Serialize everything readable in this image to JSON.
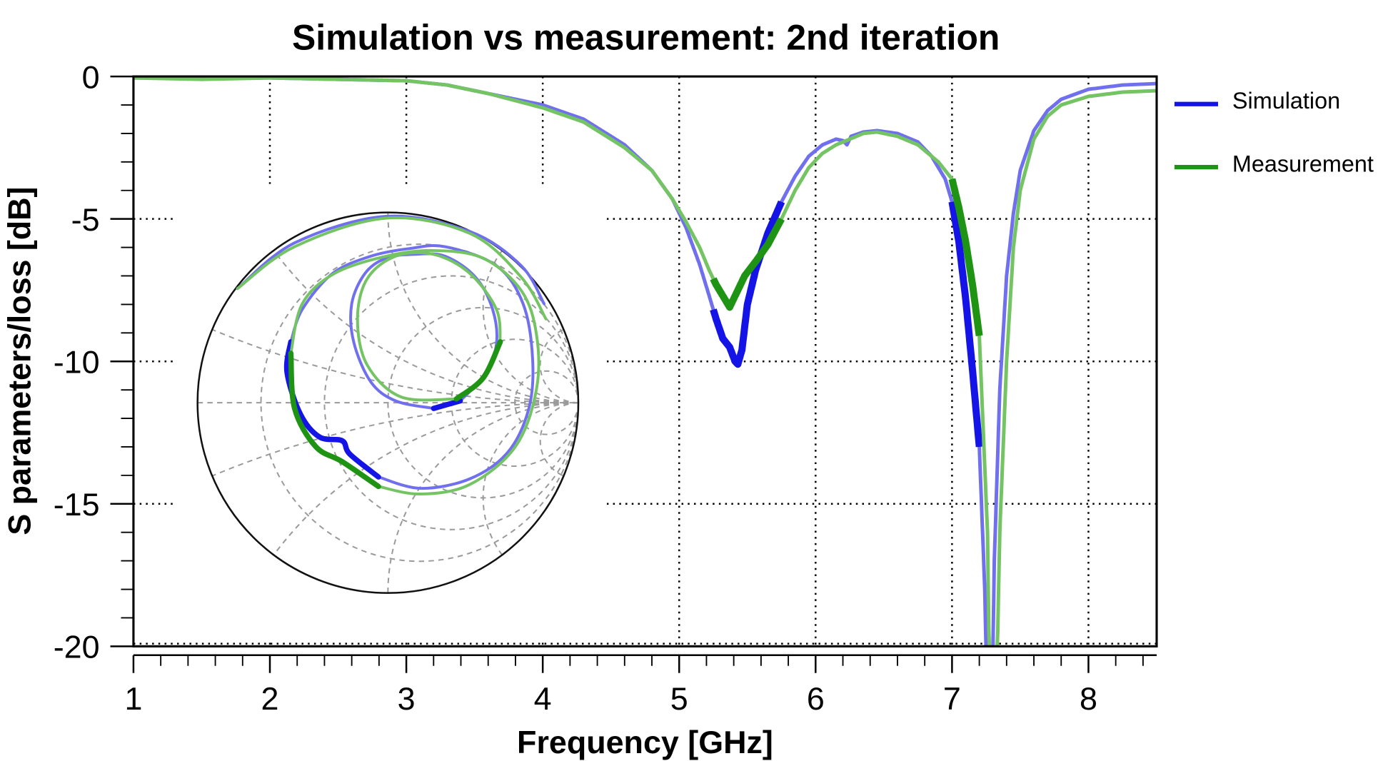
{
  "chart_data": {
    "type": "line",
    "title": "Simulation vs measurement: 2nd iteration",
    "xlabel": "Frequency [GHz]",
    "ylabel": "S parameters/loss [dB]",
    "xlim": [
      1,
      8.5
    ],
    "ylim": [
      -20,
      0
    ],
    "x_ticks": [
      "1",
      "2",
      "3",
      "4",
      "5",
      "6",
      "7",
      "8"
    ],
    "y_ticks": [
      "0",
      "-5",
      "-10",
      "-15",
      "-20"
    ],
    "grid": true,
    "legend_position": "right",
    "highlight_ranges_ghz": [
      [
        5.25,
        5.75
      ],
      [
        7.0,
        7.2
      ]
    ],
    "series": [
      {
        "name": "Simulation",
        "color": "#7070ee",
        "highlight_color": "#1414e6",
        "points": [
          [
            1,
            -0.05
          ],
          [
            1.5,
            -0.05
          ],
          [
            2,
            -0.05
          ],
          [
            2.5,
            -0.1
          ],
          [
            3,
            -0.15
          ],
          [
            3.3,
            -0.3
          ],
          [
            3.6,
            -0.6
          ],
          [
            4,
            -1.0
          ],
          [
            4.3,
            -1.5
          ],
          [
            4.6,
            -2.4
          ],
          [
            4.8,
            -3.3
          ],
          [
            4.95,
            -4.3
          ],
          [
            5.05,
            -5.3
          ],
          [
            5.15,
            -6.6
          ],
          [
            5.22,
            -7.7
          ],
          [
            5.27,
            -8.5
          ],
          [
            5.32,
            -9.2
          ],
          [
            5.37,
            -9.5
          ],
          [
            5.41,
            -10.0
          ],
          [
            5.43,
            -10.1
          ],
          [
            5.46,
            -9.6
          ],
          [
            5.5,
            -8.0
          ],
          [
            5.56,
            -6.8
          ],
          [
            5.65,
            -5.5
          ],
          [
            5.75,
            -4.4
          ],
          [
            5.85,
            -3.5
          ],
          [
            5.95,
            -2.8
          ],
          [
            6.05,
            -2.4
          ],
          [
            6.15,
            -2.2
          ],
          [
            6.2,
            -2.25
          ],
          [
            6.23,
            -2.4
          ],
          [
            6.26,
            -2.1
          ],
          [
            6.35,
            -1.95
          ],
          [
            6.45,
            -1.9
          ],
          [
            6.6,
            -2.0
          ],
          [
            6.75,
            -2.3
          ],
          [
            6.85,
            -2.8
          ],
          [
            6.95,
            -3.6
          ],
          [
            7.0,
            -4.4
          ],
          [
            7.05,
            -5.8
          ],
          [
            7.1,
            -7.8
          ],
          [
            7.15,
            -10.3
          ],
          [
            7.2,
            -13
          ],
          [
            7.24,
            -18
          ],
          [
            7.26,
            -23
          ],
          [
            7.29,
            -23
          ],
          [
            7.31,
            -17
          ],
          [
            7.35,
            -11
          ],
          [
            7.4,
            -7
          ],
          [
            7.45,
            -4.8
          ],
          [
            7.5,
            -3.3
          ],
          [
            7.6,
            -1.9
          ],
          [
            7.7,
            -1.2
          ],
          [
            7.8,
            -0.8
          ],
          [
            8,
            -0.45
          ],
          [
            8.25,
            -0.3
          ],
          [
            8.5,
            -0.25
          ]
        ]
      },
      {
        "name": "Measurement",
        "color": "#74c464",
        "highlight_color": "#1f9414",
        "points": [
          [
            1,
            -0.05
          ],
          [
            1.5,
            -0.1
          ],
          [
            2,
            -0.05
          ],
          [
            2.5,
            -0.1
          ],
          [
            3,
            -0.15
          ],
          [
            3.3,
            -0.3
          ],
          [
            3.6,
            -0.6
          ],
          [
            4,
            -1.1
          ],
          [
            4.3,
            -1.6
          ],
          [
            4.6,
            -2.5
          ],
          [
            4.8,
            -3.3
          ],
          [
            4.95,
            -4.3
          ],
          [
            5.05,
            -5.1
          ],
          [
            5.15,
            -6.0
          ],
          [
            5.22,
            -6.8
          ],
          [
            5.27,
            -7.3
          ],
          [
            5.32,
            -7.7
          ],
          [
            5.37,
            -8.1
          ],
          [
            5.42,
            -7.6
          ],
          [
            5.48,
            -7.0
          ],
          [
            5.56,
            -6.5
          ],
          [
            5.65,
            -5.9
          ],
          [
            5.75,
            -5.0
          ],
          [
            5.85,
            -4.0
          ],
          [
            5.95,
            -3.2
          ],
          [
            6.05,
            -2.7
          ],
          [
            6.15,
            -2.4
          ],
          [
            6.2,
            -2.3
          ],
          [
            6.25,
            -2.2
          ],
          [
            6.35,
            -2.0
          ],
          [
            6.45,
            -1.95
          ],
          [
            6.6,
            -2.1
          ],
          [
            6.75,
            -2.4
          ],
          [
            6.9,
            -3.0
          ],
          [
            7.0,
            -3.6
          ],
          [
            7.05,
            -4.6
          ],
          [
            7.1,
            -5.8
          ],
          [
            7.15,
            -7.3
          ],
          [
            7.2,
            -9.1
          ],
          [
            7.26,
            -16
          ],
          [
            7.28,
            -23
          ],
          [
            7.32,
            -23
          ],
          [
            7.35,
            -16
          ],
          [
            7.4,
            -10
          ],
          [
            7.45,
            -6
          ],
          [
            7.5,
            -4
          ],
          [
            7.6,
            -2.2
          ],
          [
            7.7,
            -1.4
          ],
          [
            7.8,
            -1.0
          ],
          [
            8,
            -0.7
          ],
          [
            8.25,
            -0.55
          ],
          [
            8.5,
            -0.5
          ]
        ]
      }
    ],
    "smith_inset": {
      "type": "smith",
      "resistance_circles": [
        0.2,
        0.5,
        1,
        2,
        5
      ],
      "reactance_arcs": [
        0.2,
        0.5,
        1,
        2,
        5
      ],
      "traces": [
        {
          "series": "Simulation",
          "emphasized": false,
          "closed": false,
          "gamma": [
            [
              -0.79,
              0.6
            ],
            [
              -0.49,
              0.84
            ],
            [
              -0.01,
              0.98
            ],
            [
              0.43,
              0.9
            ],
            [
              0.7,
              0.72
            ],
            [
              0.82,
              0.52
            ]
          ]
        },
        {
          "series": "Simulation",
          "emphasized": false,
          "closed": false,
          "gamma": [
            [
              -0.05,
              -0.39
            ],
            [
              0.17,
              -0.45
            ],
            [
              0.43,
              -0.4
            ],
            [
              0.63,
              -0.26
            ],
            [
              0.74,
              -0.03
            ],
            [
              0.76,
              0.23
            ],
            [
              0.71,
              0.52
            ],
            [
              0.57,
              0.72
            ],
            [
              0.3,
              0.82
            ],
            [
              0.11,
              0.81
            ],
            [
              -0.09,
              0.77
            ],
            [
              -0.29,
              0.68
            ],
            [
              -0.45,
              0.49
            ],
            [
              -0.51,
              0.32
            ]
          ]
        },
        {
          "series": "Simulation",
          "emphasized": true,
          "closed": false,
          "gamma": [
            [
              -0.51,
              0.32
            ],
            [
              -0.53,
              0.16
            ],
            [
              -0.46,
              -0.06
            ],
            [
              -0.36,
              -0.18
            ],
            [
              -0.24,
              -0.2
            ],
            [
              -0.2,
              -0.27
            ],
            [
              -0.05,
              -0.39
            ]
          ]
        },
        {
          "series": "Simulation",
          "emphasized": false,
          "closed": false,
          "gamma": [
            [
              0.38,
              0.01
            ],
            [
              0.51,
              0.15
            ],
            [
              0.57,
              0.31
            ],
            [
              0.55,
              0.49
            ],
            [
              0.46,
              0.66
            ],
            [
              0.3,
              0.77
            ],
            [
              0.14,
              0.78
            ],
            [
              -0.01,
              0.76
            ],
            [
              -0.12,
              0.68
            ],
            [
              -0.19,
              0.52
            ],
            [
              -0.18,
              0.32
            ],
            [
              -0.09,
              0.11
            ],
            [
              0.04,
              0.01
            ],
            [
              0.24,
              -0.03
            ]
          ]
        },
        {
          "series": "Simulation",
          "emphasized": true,
          "closed": false,
          "gamma": [
            [
              0.24,
              -0.03
            ],
            [
              0.38,
              0.01
            ]
          ]
        },
        {
          "series": "Measurement",
          "emphasized": false,
          "closed": false,
          "gamma": [
            [
              -0.79,
              0.6
            ],
            [
              -0.49,
              0.82
            ],
            [
              -0.01,
              0.97
            ],
            [
              0.43,
              0.89
            ],
            [
              0.7,
              0.66
            ],
            [
              0.83,
              0.44
            ]
          ]
        },
        {
          "series": "Measurement",
          "emphasized": false,
          "closed": false,
          "gamma": [
            [
              -0.05,
              -0.44
            ],
            [
              0.17,
              -0.48
            ],
            [
              0.43,
              -0.43
            ],
            [
              0.67,
              -0.23
            ],
            [
              0.78,
              0.07
            ],
            [
              0.78,
              0.36
            ],
            [
              0.7,
              0.59
            ],
            [
              0.5,
              0.76
            ],
            [
              0.24,
              0.8
            ],
            [
              -0.01,
              0.77
            ],
            [
              -0.28,
              0.68
            ],
            [
              -0.45,
              0.52
            ],
            [
              -0.51,
              0.26
            ]
          ]
        },
        {
          "series": "Measurement",
          "emphasized": true,
          "closed": false,
          "gamma": [
            [
              -0.51,
              0.26
            ],
            [
              -0.49,
              -0.03
            ],
            [
              -0.38,
              -0.23
            ],
            [
              -0.24,
              -0.31
            ],
            [
              -0.05,
              -0.44
            ]
          ]
        },
        {
          "series": "Measurement",
          "emphasized": false,
          "closed": false,
          "gamma": [
            [
              0.59,
              0.32
            ],
            [
              0.57,
              0.49
            ],
            [
              0.43,
              0.68
            ],
            [
              0.24,
              0.78
            ],
            [
              0.04,
              0.77
            ],
            [
              -0.11,
              0.65
            ],
            [
              -0.16,
              0.44
            ],
            [
              -0.11,
              0.2
            ],
            [
              0.07,
              0.03
            ],
            [
              0.36,
              0.02
            ]
          ]
        },
        {
          "series": "Measurement",
          "emphasized": true,
          "closed": false,
          "gamma": [
            [
              0.36,
              0.02
            ],
            [
              0.5,
              0.13
            ],
            [
              0.59,
              0.32
            ]
          ]
        }
      ]
    }
  }
}
